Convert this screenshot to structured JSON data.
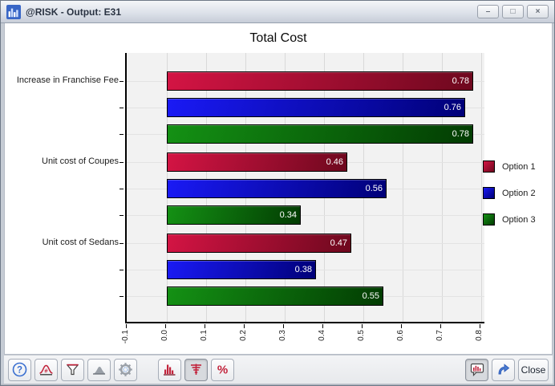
{
  "window": {
    "title": "@RISK - Output: E31",
    "controls": {
      "minimize": "–",
      "maximize": "□",
      "close": "×"
    }
  },
  "chart_data": {
    "type": "bar",
    "orientation": "horizontal",
    "title": "Total Cost",
    "categories": [
      "Increase in Franchise Fee",
      "Unit cost of Coupes",
      "Unit cost of Sedans"
    ],
    "series": [
      {
        "name": "Option 1",
        "color": "#d41444",
        "color_dark": "#6e081e",
        "values": [
          0.78,
          0.46,
          0.47
        ]
      },
      {
        "name": "Option 2",
        "color": "#1a1af5",
        "color_dark": "#000078",
        "values": [
          0.76,
          0.56,
          0.38
        ]
      },
      {
        "name": "Option 3",
        "color": "#149114",
        "color_dark": "#023c02",
        "values": [
          0.78,
          0.34,
          0.55
        ]
      }
    ],
    "xlim": [
      -0.1,
      0.8
    ],
    "xtick_labels": [
      "-0.1",
      "0.0",
      "0.1",
      "0.2",
      "0.3",
      "0.4",
      "0.5",
      "0.6",
      "0.7",
      "0.8"
    ],
    "grid": true,
    "legend_position": "right",
    "value_label_style": "white text inside right end of bar",
    "value_decimals": 2
  },
  "toolbar": {
    "left_buttons": [
      {
        "name": "help",
        "icon": "question-circle-icon"
      },
      {
        "name": "define-distribution",
        "icon": "bell-curve-icon"
      },
      {
        "name": "filter",
        "icon": "funnel-icon"
      },
      {
        "name": "overlay-curve",
        "icon": "area-curve-icon"
      },
      {
        "name": "settings",
        "icon": "gear-icon"
      }
    ],
    "middle_buttons": [
      {
        "name": "histogram-view",
        "icon": "histogram-icon",
        "pressed": false
      },
      {
        "name": "tornado-view",
        "icon": "tornado-icon",
        "pressed": true
      },
      {
        "name": "percent-view",
        "icon": "percent-icon",
        "pressed": false
      }
    ],
    "right_buttons": [
      {
        "name": "chart-callout",
        "icon": "chart-callout-icon",
        "pressed": true
      },
      {
        "name": "export",
        "icon": "export-arrow-icon",
        "pressed": false
      }
    ],
    "close_label": "Close"
  }
}
